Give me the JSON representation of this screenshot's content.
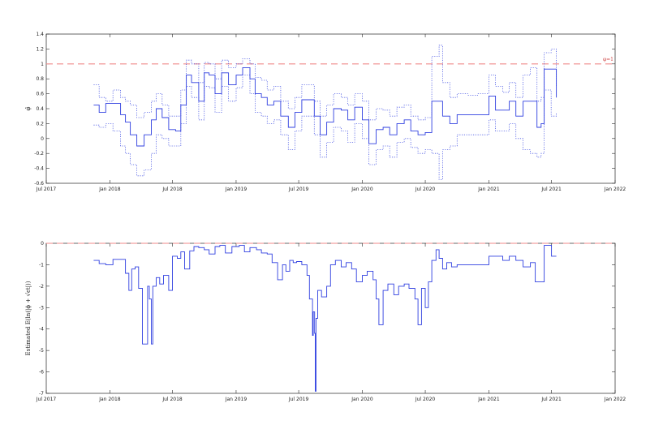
{
  "chart_data": [
    {
      "type": "line",
      "ylabel": "φ̂",
      "xlim": [
        "2017-07-01",
        "2022-01-01"
      ],
      "ylim": [
        -0.6,
        1.4
      ],
      "yticks": [
        -0.6,
        -0.4,
        -0.2,
        0,
        0.2,
        0.4,
        0.6,
        0.8,
        1,
        1.2,
        1.4
      ],
      "ytick_labels": [
        "-0.6",
        "-0.4",
        "-0.2",
        "0",
        "0.2",
        "0.4",
        "0.6",
        "0.8",
        "1",
        "1.2",
        "1.4"
      ],
      "xticks": [
        "2017-07-01",
        "2018-01-01",
        "2018-07-01",
        "2019-01-01",
        "2019-07-01",
        "2020-01-01",
        "2020-07-01",
        "2021-01-01",
        "2021-07-01",
        "2022-01-01"
      ],
      "xtick_labels": [
        "Jul 2017",
        "Jan 2018",
        "Jul 2018",
        "Jan 2019",
        "Jul 2019",
        "Jan 2020",
        "Jul 2020",
        "Jan 2021",
        "Jul 2021",
        "Jan 2022"
      ],
      "reference_line": {
        "y": 1,
        "label": "φ=1",
        "color": "#f08a8a"
      },
      "series_color": "#2f3fe0",
      "series": [
        {
          "style": "solid",
          "x": [
            "2017-11-15",
            "2017-12-01",
            "2017-12-20",
            "2018-01-10",
            "2018-02-01",
            "2018-02-15",
            "2018-03-01",
            "2018-03-20",
            "2018-04-10",
            "2018-05-01",
            "2018-05-15",
            "2018-06-01",
            "2018-06-20",
            "2018-07-10",
            "2018-07-25",
            "2018-08-10",
            "2018-08-25",
            "2018-09-15",
            "2018-10-01",
            "2018-10-15",
            "2018-11-01",
            "2018-11-20",
            "2018-12-10",
            "2019-01-01",
            "2019-01-20",
            "2019-02-10",
            "2019-02-25",
            "2019-03-15",
            "2019-04-01",
            "2019-04-20",
            "2019-05-10",
            "2019-06-01",
            "2019-06-20",
            "2019-07-10",
            "2019-07-25",
            "2019-08-15",
            "2019-09-01",
            "2019-09-20",
            "2019-10-10",
            "2019-11-01",
            "2019-11-20",
            "2019-12-10",
            "2020-01-01",
            "2020-01-20",
            "2020-02-10",
            "2020-03-01",
            "2020-03-20",
            "2020-04-10",
            "2020-05-01",
            "2020-05-20",
            "2020-06-10",
            "2020-07-01",
            "2020-07-20",
            "2020-08-10",
            "2020-08-20",
            "2020-09-10",
            "2020-10-01",
            "2020-11-01",
            "2020-12-01",
            "2021-01-01",
            "2021-01-20",
            "2021-02-10",
            "2021-03-01",
            "2021-03-20",
            "2021-04-10",
            "2021-05-01",
            "2021-05-20",
            "2021-06-01",
            "2021-06-10",
            "2021-06-30",
            "2021-07-15"
          ],
          "y": [
            0.45,
            0.35,
            0.47,
            0.47,
            0.32,
            0.22,
            0.05,
            -0.1,
            0.05,
            0.25,
            0.4,
            0.28,
            0.12,
            0.1,
            0.45,
            0.85,
            0.75,
            0.5,
            0.88,
            0.85,
            0.6,
            0.88,
            0.72,
            0.85,
            0.95,
            0.8,
            0.6,
            0.55,
            0.45,
            0.5,
            0.3,
            0.15,
            0.35,
            0.52,
            0.52,
            0.3,
            0.05,
            0.22,
            0.4,
            0.38,
            0.25,
            0.42,
            0.25,
            -0.07,
            0.12,
            0.15,
            0.05,
            0.2,
            0.25,
            0.1,
            0.05,
            0.08,
            0.5,
            0.5,
            0.3,
            0.2,
            0.32,
            0.32,
            0.32,
            0.57,
            0.38,
            0.38,
            0.5,
            0.3,
            0.5,
            0.5,
            0.15,
            0.2,
            0.93,
            0.93,
            0.55
          ]
        },
        {
          "style": "dotted",
          "x": [
            "2017-11-15",
            "2017-12-01",
            "2017-12-20",
            "2018-01-10",
            "2018-02-01",
            "2018-02-15",
            "2018-03-01",
            "2018-03-20",
            "2018-04-10",
            "2018-05-01",
            "2018-05-15",
            "2018-06-01",
            "2018-06-20",
            "2018-07-10",
            "2018-07-25",
            "2018-08-10",
            "2018-08-25",
            "2018-09-15",
            "2018-10-01",
            "2018-10-15",
            "2018-11-01",
            "2018-11-20",
            "2018-12-10",
            "2019-01-01",
            "2019-01-20",
            "2019-02-10",
            "2019-02-25",
            "2019-03-15",
            "2019-04-01",
            "2019-04-20",
            "2019-05-10",
            "2019-06-01",
            "2019-06-20",
            "2019-07-10",
            "2019-07-25",
            "2019-08-15",
            "2019-09-01",
            "2019-09-20",
            "2019-10-10",
            "2019-11-01",
            "2019-11-20",
            "2019-12-10",
            "2020-01-01",
            "2020-01-20",
            "2020-02-10",
            "2020-03-01",
            "2020-03-20",
            "2020-04-10",
            "2020-05-01",
            "2020-05-20",
            "2020-06-10",
            "2020-07-01",
            "2020-07-20",
            "2020-08-10",
            "2020-08-20",
            "2020-09-10",
            "2020-10-01",
            "2020-11-01",
            "2020-12-01",
            "2021-01-01",
            "2021-01-20",
            "2021-02-10",
            "2021-03-01",
            "2021-03-20",
            "2021-04-10",
            "2021-05-01",
            "2021-05-20",
            "2021-06-01",
            "2021-06-10",
            "2021-06-30",
            "2021-07-15"
          ],
          "y": [
            0.72,
            0.55,
            0.5,
            0.65,
            0.55,
            0.5,
            0.45,
            0.28,
            0.35,
            0.5,
            0.6,
            0.45,
            0.3,
            0.3,
            0.65,
            1.05,
            1.0,
            0.75,
            1.02,
            1.0,
            0.8,
            1.05,
            0.95,
            1.0,
            1.07,
            1.0,
            0.82,
            0.78,
            0.65,
            0.7,
            0.5,
            0.4,
            0.55,
            0.72,
            0.72,
            0.5,
            0.3,
            0.45,
            0.6,
            0.55,
            0.45,
            0.6,
            0.5,
            0.25,
            0.4,
            0.38,
            0.3,
            0.42,
            0.45,
            0.3,
            0.25,
            0.28,
            1.1,
            1.25,
            0.75,
            0.55,
            0.6,
            0.58,
            0.6,
            0.85,
            0.7,
            0.62,
            0.75,
            0.55,
            0.85,
            0.95,
            0.5,
            0.55,
            1.15,
            1.2,
            0.7
          ]
        },
        {
          "style": "dotted",
          "x": [
            "2017-11-15",
            "2017-12-01",
            "2017-12-20",
            "2018-01-10",
            "2018-02-01",
            "2018-02-15",
            "2018-03-01",
            "2018-03-20",
            "2018-04-10",
            "2018-05-01",
            "2018-05-15",
            "2018-06-01",
            "2018-06-20",
            "2018-07-10",
            "2018-07-25",
            "2018-08-10",
            "2018-08-25",
            "2018-09-15",
            "2018-10-01",
            "2018-10-15",
            "2018-11-01",
            "2018-11-20",
            "2018-12-10",
            "2019-01-01",
            "2019-01-20",
            "2019-02-10",
            "2019-02-25",
            "2019-03-15",
            "2019-04-01",
            "2019-04-20",
            "2019-05-10",
            "2019-06-01",
            "2019-06-20",
            "2019-07-10",
            "2019-07-25",
            "2019-08-15",
            "2019-09-01",
            "2019-09-20",
            "2019-10-10",
            "2019-11-01",
            "2019-11-20",
            "2019-12-10",
            "2020-01-01",
            "2020-01-20",
            "2020-02-10",
            "2020-03-01",
            "2020-03-20",
            "2020-04-10",
            "2020-05-01",
            "2020-05-20",
            "2020-06-10",
            "2020-07-01",
            "2020-07-20",
            "2020-08-10",
            "2020-08-20",
            "2020-09-10",
            "2020-10-01",
            "2020-11-01",
            "2020-12-01",
            "2021-01-01",
            "2021-01-20",
            "2021-02-10",
            "2021-03-01",
            "2021-03-20",
            "2021-04-10",
            "2021-05-01",
            "2021-05-20",
            "2021-06-01",
            "2021-06-10",
            "2021-06-30",
            "2021-07-15"
          ],
          "y": [
            0.18,
            0.15,
            0.2,
            0.1,
            -0.1,
            -0.2,
            -0.35,
            -0.5,
            -0.42,
            -0.2,
            0.05,
            0.0,
            -0.1,
            -0.1,
            0.2,
            0.7,
            0.55,
            0.25,
            0.7,
            0.68,
            0.35,
            0.7,
            0.5,
            0.68,
            0.85,
            0.6,
            0.35,
            0.3,
            0.2,
            0.25,
            0.05,
            -0.15,
            0.1,
            0.3,
            0.3,
            0.05,
            -0.25,
            -0.05,
            0.15,
            0.1,
            -0.05,
            0.2,
            0.0,
            -0.35,
            -0.15,
            -0.1,
            -0.25,
            -0.05,
            0.0,
            -0.12,
            -0.2,
            -0.15,
            -0.2,
            -0.55,
            -0.15,
            -0.1,
            0.05,
            0.05,
            0.05,
            0.25,
            0.1,
            0.1,
            0.2,
            0.0,
            -0.15,
            -0.2,
            -0.25,
            -0.2,
            0.65,
            0.3,
            0.35
          ]
        }
      ]
    },
    {
      "type": "line",
      "ylabel": "Estimated E(ln(|ϕ + √ϵt|))",
      "xlim": [
        "2017-07-01",
        "2022-01-01"
      ],
      "ylim": [
        -7,
        0
      ],
      "yticks": [
        -7,
        -6,
        -5,
        -4,
        -3,
        -2,
        -1,
        0
      ],
      "ytick_labels": [
        "-7",
        "-6",
        "-5",
        "-4",
        "-3",
        "-2",
        "-1",
        "0"
      ],
      "xticks": [
        "2017-07-01",
        "2018-01-01",
        "2018-07-01",
        "2019-01-01",
        "2019-07-01",
        "2020-01-01",
        "2020-07-01",
        "2021-01-01",
        "2021-07-01",
        "2022-01-01"
      ],
      "xtick_labels": [
        "Jul 2017",
        "Jan 2018",
        "Jul 2018",
        "Jan 2019",
        "Jul 2019",
        "Jan 2020",
        "Jul 2020",
        "Jan 2021",
        "Jul 2021",
        "Jan 2022"
      ],
      "reference_line": {
        "y": 0,
        "color": "#f08a8a"
      },
      "series_color": "#2f3fe0",
      "series": [
        {
          "style": "solid",
          "x": [
            "2017-11-15",
            "2017-12-01",
            "2017-12-20",
            "2018-01-10",
            "2018-01-25",
            "2018-02-05",
            "2018-02-15",
            "2018-02-25",
            "2018-03-05",
            "2018-03-15",
            "2018-03-25",
            "2018-04-05",
            "2018-04-15",
            "2018-04-20",
            "2018-04-25",
            "2018-05-01",
            "2018-05-05",
            "2018-05-15",
            "2018-05-25",
            "2018-06-05",
            "2018-06-20",
            "2018-07-01",
            "2018-07-15",
            "2018-07-25",
            "2018-08-05",
            "2018-08-20",
            "2018-09-01",
            "2018-09-15",
            "2018-10-01",
            "2018-10-15",
            "2018-11-01",
            "2018-11-15",
            "2018-12-01",
            "2018-12-20",
            "2019-01-10",
            "2019-01-25",
            "2019-02-10",
            "2019-03-01",
            "2019-03-15",
            "2019-04-01",
            "2019-04-15",
            "2019-05-01",
            "2019-05-15",
            "2019-05-25",
            "2019-06-05",
            "2019-06-15",
            "2019-06-25",
            "2019-07-10",
            "2019-07-25",
            "2019-08-01",
            "2019-08-10",
            "2019-08-12",
            "2019-08-16",
            "2019-08-18",
            "2019-08-20",
            "2019-08-25",
            "2019-09-05",
            "2019-09-20",
            "2019-10-01",
            "2019-10-15",
            "2019-11-01",
            "2019-11-15",
            "2019-12-01",
            "2019-12-15",
            "2020-01-01",
            "2020-01-15",
            "2020-02-01",
            "2020-02-10",
            "2020-02-18",
            "2020-03-01",
            "2020-03-15",
            "2020-04-01",
            "2020-04-15",
            "2020-05-01",
            "2020-05-15",
            "2020-06-01",
            "2020-06-10",
            "2020-06-20",
            "2020-07-01",
            "2020-07-10",
            "2020-07-20",
            "2020-08-01",
            "2020-08-10",
            "2020-08-20",
            "2020-09-01",
            "2020-09-15",
            "2020-10-01",
            "2020-11-01",
            "2020-12-01",
            "2021-01-01",
            "2021-01-20",
            "2021-02-10",
            "2021-03-01",
            "2021-03-20",
            "2021-04-10",
            "2021-05-01",
            "2021-05-15",
            "2021-06-01",
            "2021-06-10",
            "2021-06-20",
            "2021-07-01",
            "2021-07-15"
          ],
          "y": [
            -0.8,
            -0.95,
            -1.0,
            -0.75,
            -0.75,
            -0.75,
            -1.4,
            -2.2,
            -1.2,
            -1.1,
            -2.1,
            -4.7,
            -4.7,
            -2.0,
            -2.6,
            -4.7,
            -2.0,
            -1.6,
            -1.9,
            -1.5,
            -2.2,
            -0.6,
            -0.7,
            -0.4,
            -1.2,
            -0.35,
            -0.15,
            -0.2,
            -0.3,
            -0.5,
            -0.15,
            -0.1,
            -0.45,
            -0.15,
            -0.1,
            -0.4,
            -0.2,
            -0.3,
            -0.45,
            -0.5,
            -0.9,
            -1.7,
            -1.0,
            -1.3,
            -0.8,
            -0.9,
            -0.85,
            -1.0,
            -1.5,
            -2.6,
            -4.3,
            -3.2,
            -4.2,
            -6.9,
            -3.5,
            -2.2,
            -2.5,
            -2.0,
            -1.0,
            -0.8,
            -1.1,
            -0.9,
            -1.2,
            -1.8,
            -1.5,
            -1.3,
            -1.7,
            -2.6,
            -3.8,
            -2.2,
            -1.9,
            -2.4,
            -2.0,
            -1.9,
            -2.1,
            -2.6,
            -3.8,
            -2.1,
            -3.0,
            -1.8,
            -0.8,
            -0.3,
            -0.7,
            -1.2,
            -0.9,
            -1.1,
            -1.0,
            -1.0,
            -1.0,
            -0.6,
            -0.6,
            -0.8,
            -0.6,
            -0.8,
            -1.1,
            -0.9,
            -1.8,
            -1.8,
            -0.1,
            -0.1,
            -0.6,
            -0.6
          ]
        }
      ]
    }
  ]
}
